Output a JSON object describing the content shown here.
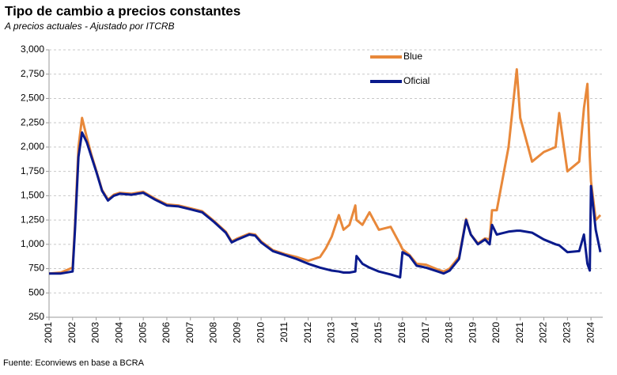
{
  "chart_data": {
    "type": "line",
    "title": "Tipo  de cambio  a precios constantes",
    "subtitle": "A precios actuales - Ajustado por ITCRB",
    "source": "Fuente: Econviews en base a BCRA",
    "x": [
      2001.0,
      2001.5,
      2002.0,
      2002.1,
      2002.25,
      2002.4,
      2002.6,
      2002.8,
      2003.0,
      2003.25,
      2003.5,
      2003.75,
      2004.0,
      2004.5,
      2005.0,
      2005.5,
      2006.0,
      2006.5,
      2007.0,
      2007.5,
      2008.0,
      2008.5,
      2008.75,
      2009.0,
      2009.5,
      2009.75,
      2010.0,
      2010.5,
      2011.0,
      2011.5,
      2012.0,
      2012.5,
      2012.75,
      2013.0,
      2013.3,
      2013.5,
      2013.75,
      2014.0,
      2014.05,
      2014.3,
      2014.6,
      2015.0,
      2015.5,
      2015.9,
      2016.0,
      2016.3,
      2016.6,
      2017.0,
      2017.5,
      2017.75,
      2018.0,
      2018.4,
      2018.7,
      2018.9,
      2019.2,
      2019.5,
      2019.7,
      2019.8,
      2020.0,
      2020.5,
      2020.85,
      2021.0,
      2021.5,
      2022.0,
      2022.5,
      2022.65,
      2023.0,
      2023.5,
      2023.7,
      2023.85,
      2023.95,
      2024.0,
      2024.2,
      2024.4
    ],
    "series": [
      {
        "name": "Blue",
        "color": "#e8883a",
        "values": [
          700,
          710,
          760,
          1200,
          2000,
          2300,
          2100,
          1920,
          1760,
          1560,
          1460,
          1510,
          1530,
          1520,
          1540,
          1470,
          1410,
          1400,
          1370,
          1340,
          1240,
          1130,
          1030,
          1060,
          1110,
          1100,
          1030,
          940,
          900,
          870,
          830,
          870,
          960,
          1080,
          1300,
          1150,
          1200,
          1400,
          1250,
          1200,
          1330,
          1150,
          1180,
          1000,
          950,
          890,
          800,
          790,
          740,
          720,
          750,
          870,
          1260,
          1100,
          1010,
          1060,
          1050,
          1350,
          1350,
          2000,
          2800,
          2300,
          1850,
          1950,
          2000,
          2350,
          1750,
          1850,
          2400,
          2650,
          1900,
          1650,
          1250,
          1300
        ]
      },
      {
        "name": "Oficial",
        "color": "#0a1a8c",
        "values": [
          700,
          700,
          720,
          1150,
          1900,
          2150,
          2050,
          1900,
          1750,
          1550,
          1450,
          1500,
          1520,
          1510,
          1530,
          1460,
          1400,
          1390,
          1360,
          1330,
          1230,
          1120,
          1020,
          1050,
          1100,
          1090,
          1020,
          930,
          890,
          850,
          800,
          760,
          745,
          730,
          720,
          710,
          710,
          720,
          880,
          800,
          760,
          720,
          690,
          660,
          920,
          880,
          780,
          760,
          720,
          700,
          730,
          850,
          1250,
          1100,
          1000,
          1050,
          1000,
          1200,
          1100,
          1130,
          1140,
          1140,
          1120,
          1050,
          1000,
          990,
          920,
          930,
          1100,
          800,
          730,
          1600,
          1150,
          920
        ]
      }
    ],
    "xlim": [
      2001,
      2024.5
    ],
    "xticks": [
      2001,
      2002,
      2003,
      2004,
      2005,
      2006,
      2007,
      2008,
      2009,
      2010,
      2011,
      2012,
      2013,
      2014,
      2015,
      2016,
      2017,
      2018,
      2019,
      2020,
      2021,
      2022,
      2023,
      2024
    ],
    "ylim": [
      250,
      3000
    ],
    "yticks": [
      250,
      500,
      750,
      {
        "value": 1000,
        "label": "1,000"
      },
      {
        "value": 1250,
        "label": "1,250"
      },
      {
        "value": 1500,
        "label": "1,500"
      },
      {
        "value": 1750,
        "label": "1,750"
      },
      {
        "value": 2000,
        "label": "2,000"
      },
      {
        "value": 2250,
        "label": "2,250"
      },
      {
        "value": 2500,
        "label": "2,500"
      },
      {
        "value": 2750,
        "label": "2,750"
      },
      {
        "value": 3000,
        "label": "3,000"
      }
    ],
    "grid": true,
    "legend": "top-right"
  }
}
